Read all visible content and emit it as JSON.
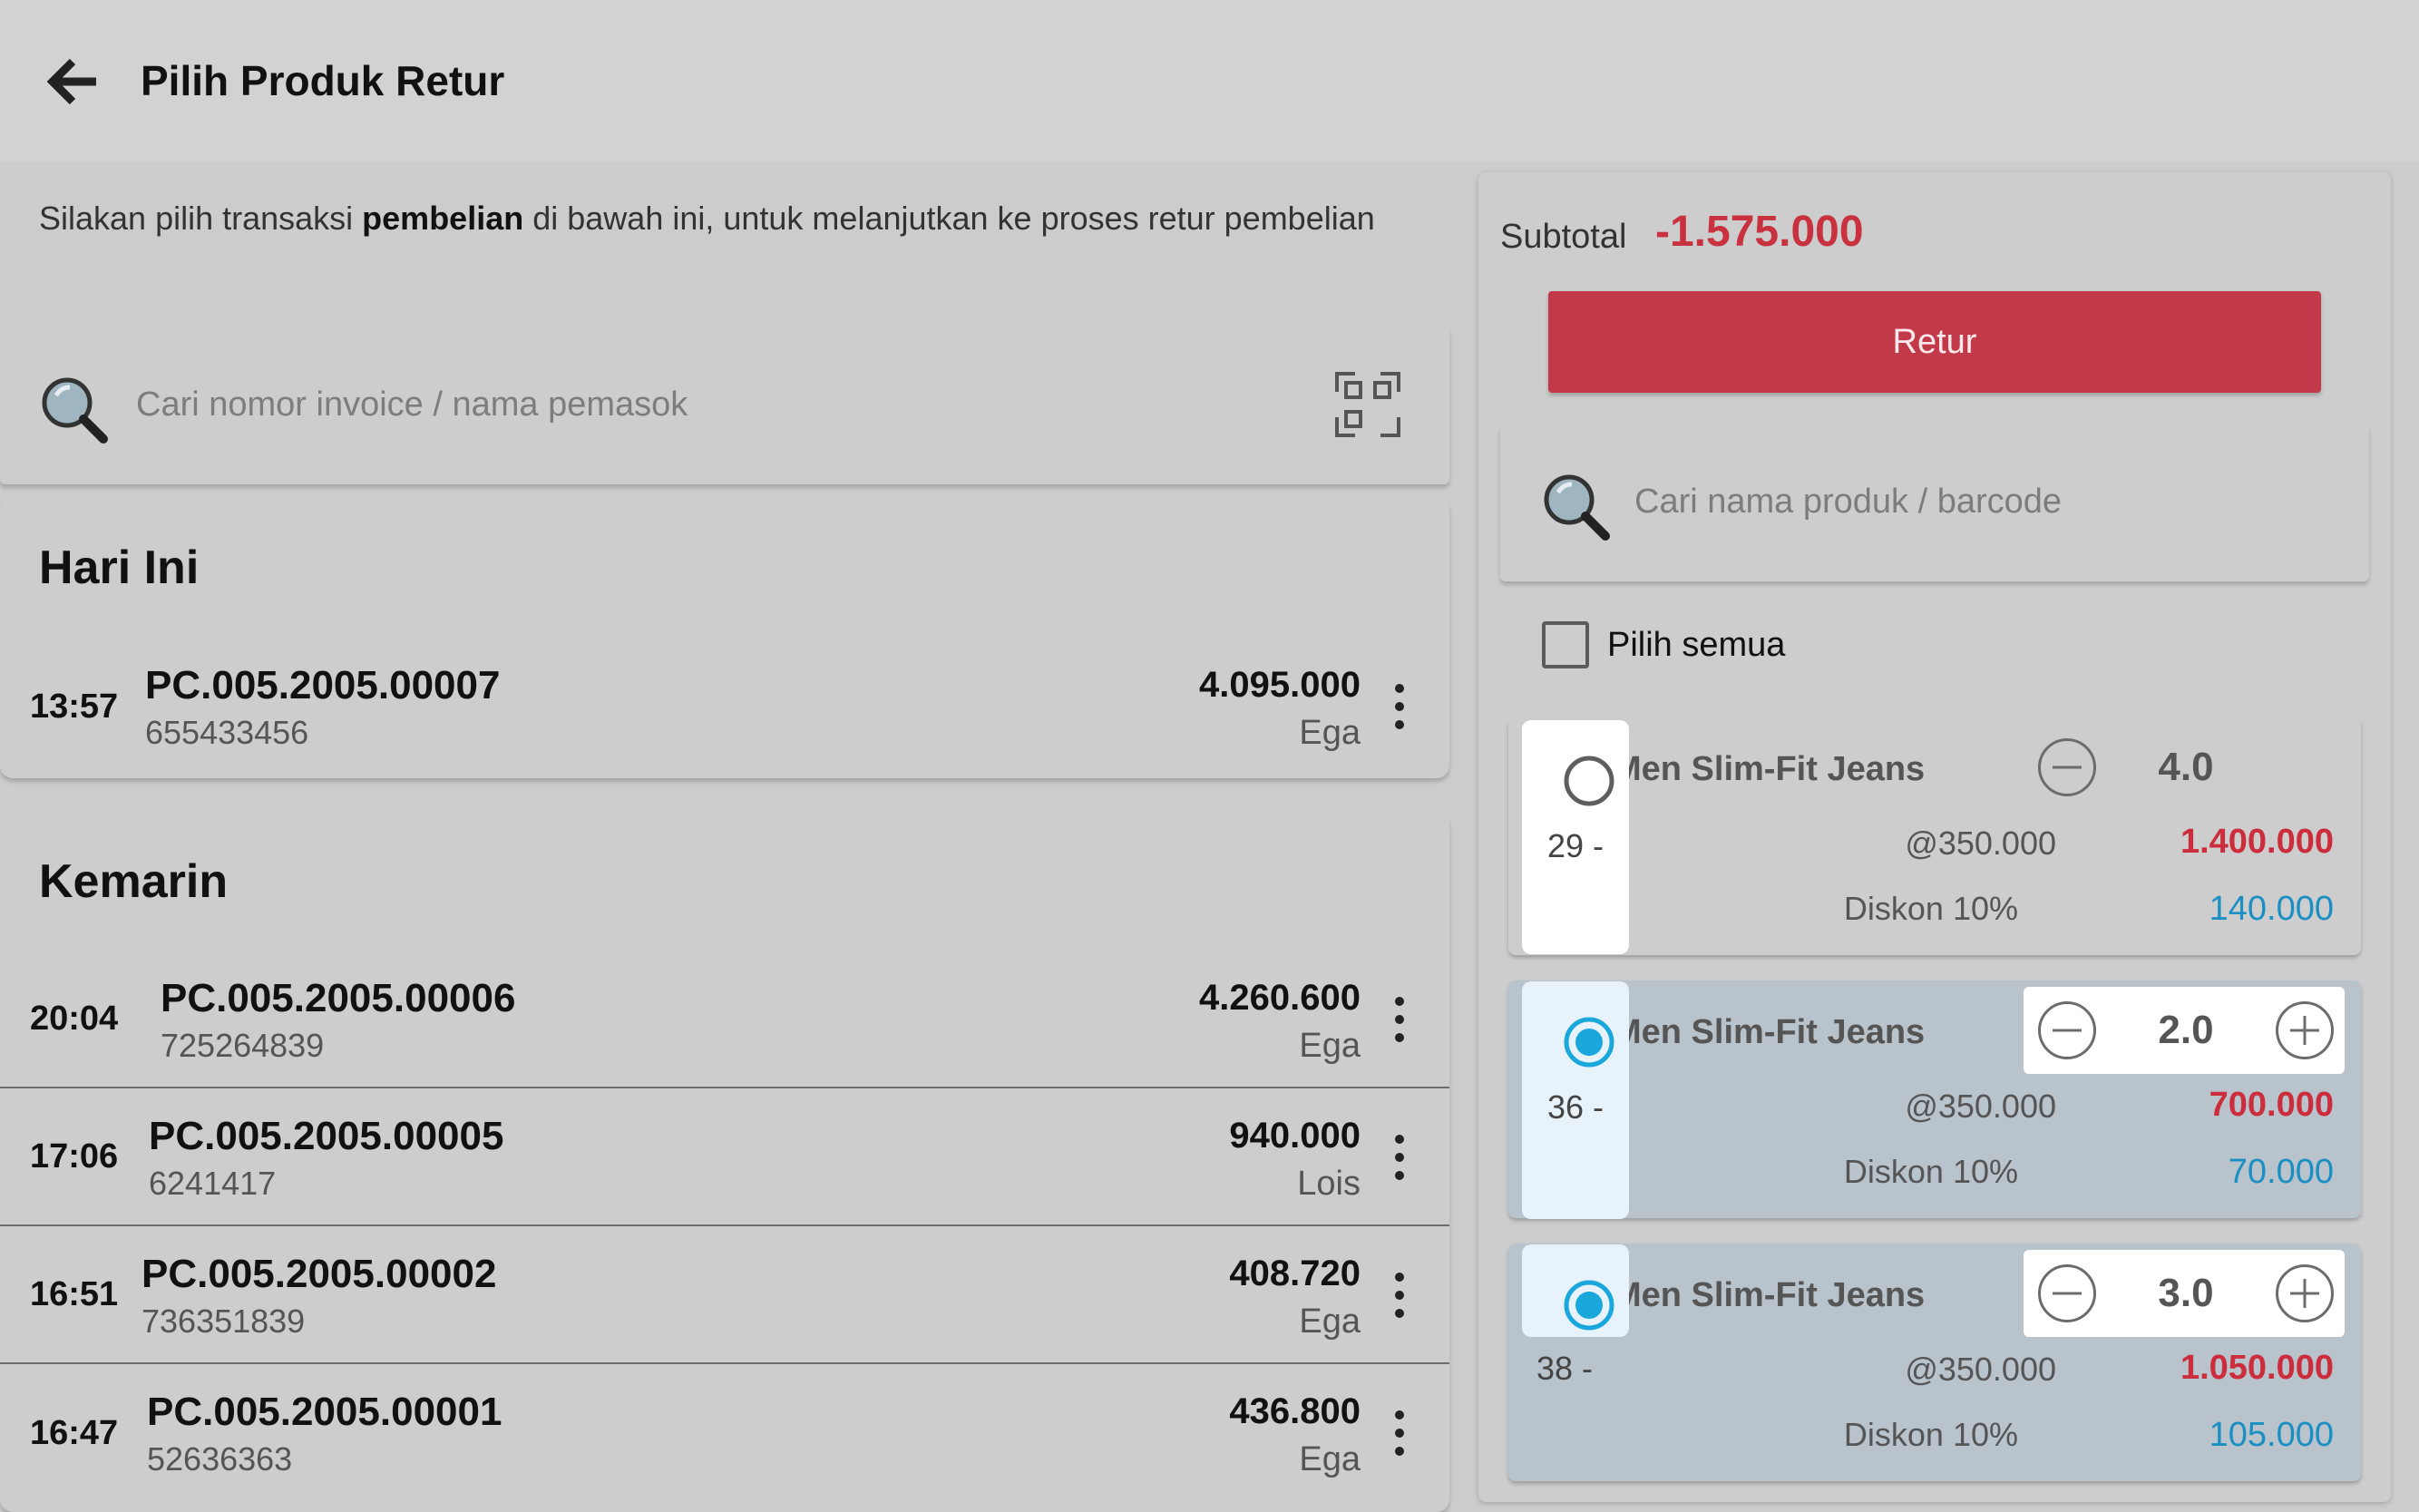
{
  "header": {
    "title": "Pilih Produk Retur"
  },
  "instruction": {
    "prefix": "Silakan pilih transaksi ",
    "emphasis": "pembelian",
    "suffix": " di bawah ini, untuk melanjutkan ke proses retur pembelian"
  },
  "transaction_search": {
    "placeholder": "Cari nomor invoice / nama pemasok"
  },
  "groups": [
    {
      "title": "Hari Ini",
      "transactions": [
        {
          "time": "13:57",
          "invoice": "PC.005.2005.00007",
          "reference": "655433456",
          "amount": "4.095.000",
          "supplier": "Ega"
        }
      ]
    },
    {
      "title": "Kemarin",
      "transactions": [
        {
          "time": "20:04",
          "invoice": "PC.005.2005.00006",
          "reference": "725264839",
          "amount": "4.260.600",
          "supplier": "Ega"
        },
        {
          "time": "17:06",
          "invoice": "PC.005.2005.00005",
          "reference": "6241417",
          "amount": "940.000",
          "supplier": "Lois"
        },
        {
          "time": "16:51",
          "invoice": "PC.005.2005.00002",
          "reference": "736351839",
          "amount": "408.720",
          "supplier": "Ega"
        },
        {
          "time": "16:47",
          "invoice": "PC.005.2005.00001",
          "reference": "52636363",
          "amount": "436.800",
          "supplier": "Ega"
        }
      ]
    }
  ],
  "return_panel": {
    "subtotal_label": "Subtotal",
    "subtotal_value": "-1.575.000",
    "retur_button": "Retur",
    "product_search_placeholder": "Cari nama produk / barcode",
    "select_all_label": "Pilih semua",
    "items": [
      {
        "name": "Men Slim-Fit Jeans",
        "size": "29 -",
        "quantity": "4.0",
        "unit_price": "@350.000",
        "total": "1.400.000",
        "discount_label": "Diskon 10%",
        "discount_value": "140.000",
        "selected": false
      },
      {
        "name": "Men Slim-Fit Jeans",
        "size": "36 -",
        "quantity": "2.0",
        "unit_price": "@350.000",
        "total": "700.000",
        "discount_label": "Diskon 10%",
        "discount_value": "70.000",
        "selected": true
      },
      {
        "name": "Men Slim-Fit Jeans",
        "size": "38 -",
        "quantity": "3.0",
        "unit_price": "@350.000",
        "total": "1.050.000",
        "discount_label": "Diskon 10%",
        "discount_value": "105.000",
        "selected": true
      }
    ]
  },
  "colors": {
    "accent_red": "#c23a4a",
    "negative_red": "#cc2d3d",
    "discount_blue": "#1a8fc3",
    "radio_blue": "#1aa7dc"
  }
}
